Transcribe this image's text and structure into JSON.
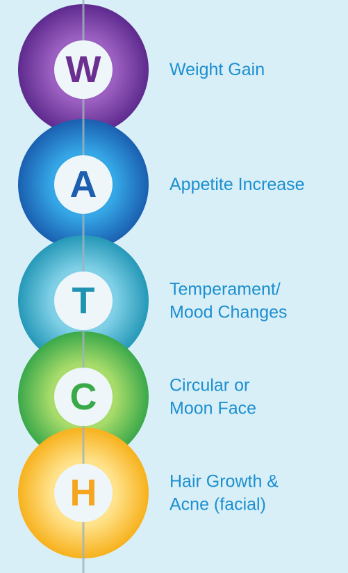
{
  "items": [
    {
      "letter": "W",
      "lines": [
        "Weight Gain"
      ]
    },
    {
      "letter": "A",
      "lines": [
        "Appetite Increase"
      ]
    },
    {
      "letter": "T",
      "lines": [
        "Temperament/",
        "Mood Changes"
      ]
    },
    {
      "letter": "C",
      "lines": [
        "Circular or",
        "Moon Face"
      ]
    },
    {
      "letter": "H",
      "lines": [
        "Hair Growth &",
        "Acne (facial)"
      ]
    }
  ]
}
